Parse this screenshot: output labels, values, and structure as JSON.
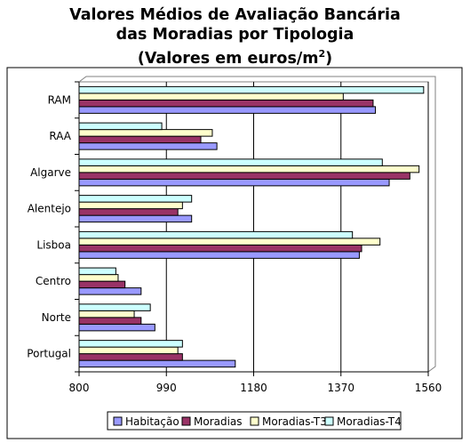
{
  "chart_data": {
    "type": "bar",
    "orientation": "horizontal",
    "title_lines": [
      "Valores Médios de Avaliação Bancária",
      "das Moradias por Tipologia",
      "(Valores em euros/m",
      "2",
      ")"
    ],
    "categories": [
      "RAM",
      "RAA",
      "Algarve",
      "Alentejo",
      "Lisboa",
      "Centro",
      "Norte",
      "Portugal"
    ],
    "series": [
      {
        "name": "Habitação",
        "color": "#9999ff",
        "values": [
          1445,
          1100,
          1475,
          1045,
          1410,
          935,
          965,
          1140
        ]
      },
      {
        "name": "Moradias",
        "color": "#993366",
        "values": [
          1440,
          1065,
          1520,
          1015,
          1415,
          900,
          935,
          1025
        ]
      },
      {
        "name": "Moradias-T3",
        "color": "#ffffcc",
        "values": [
          1375,
          1090,
          1540,
          1025,
          1455,
          885,
          920,
          1015
        ]
      },
      {
        "name": "Moradias-T4",
        "color": "#ccffff",
        "values": [
          1550,
          980,
          1460,
          1045,
          1395,
          880,
          955,
          1025
        ]
      }
    ],
    "xticks": [
      "800",
      "990",
      "1180",
      "1370",
      "1560"
    ],
    "xlim": [
      800,
      1560
    ],
    "grid": true,
    "legend_position": "bottom"
  }
}
